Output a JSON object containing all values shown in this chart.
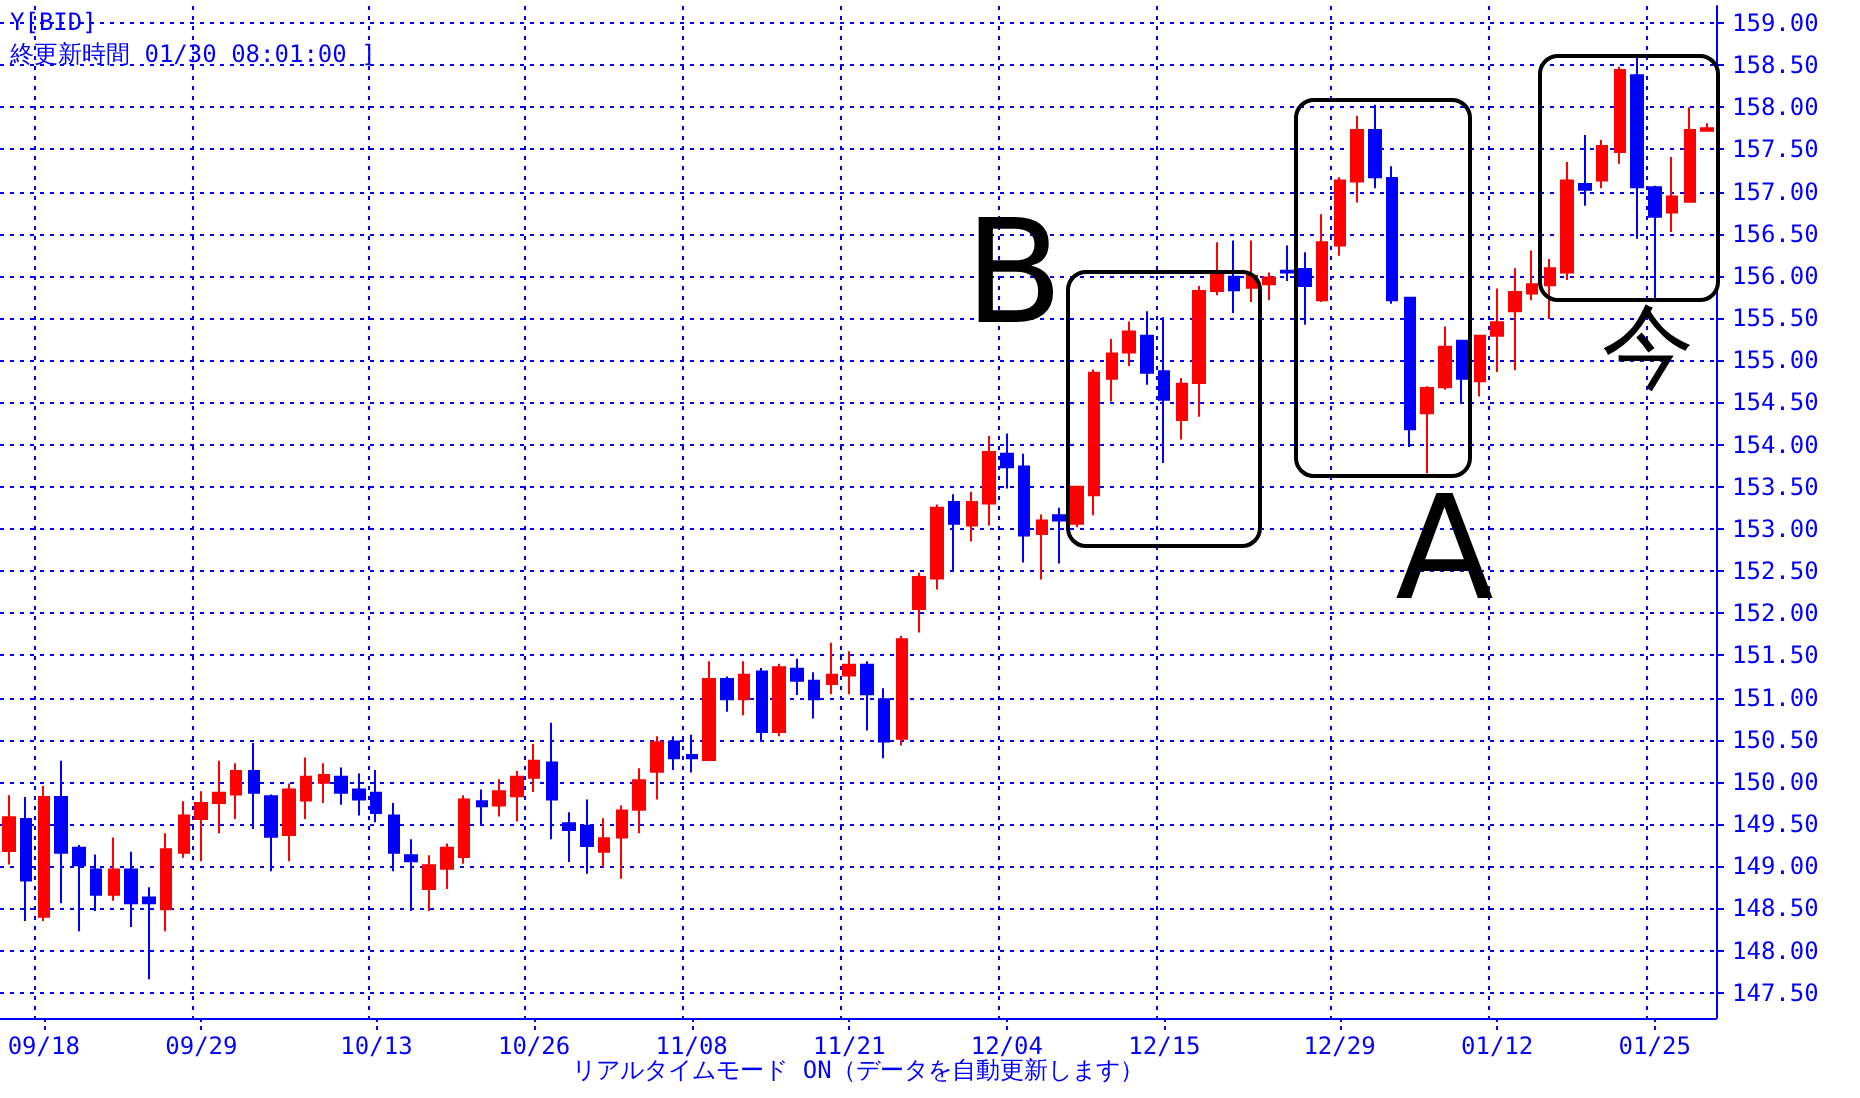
{
  "chart_data": {
    "type": "candlestick",
    "title": "Y[BID]",
    "subtitle": "終更新時間 01/30 08:01:00 ]",
    "categories": [
      null,
      null,
      "09/18",
      null,
      null,
      null,
      null,
      null,
      null,
      null,
      null,
      "09/29",
      null,
      null,
      null,
      null,
      null,
      null,
      null,
      null,
      null,
      "10/13",
      null,
      null,
      null,
      null,
      null,
      null,
      null,
      null,
      "10/26",
      null,
      null,
      null,
      null,
      null,
      null,
      null,
      null,
      "11/08",
      null,
      null,
      null,
      null,
      null,
      null,
      null,
      null,
      "11/21",
      null,
      null,
      null,
      null,
      null,
      null,
      null,
      null,
      "12/04",
      null,
      null,
      null,
      null,
      null,
      null,
      null,
      null,
      "12/15",
      null,
      null,
      null,
      null,
      null,
      null,
      null,
      null,
      null,
      "12/29",
      null,
      null,
      null,
      null,
      null,
      null,
      null,
      null,
      "01/12",
      null,
      null,
      null,
      null,
      null,
      null,
      null,
      null,
      "01/25",
      null,
      null,
      null
    ],
    "ohlc": [
      [
        149.18,
        149.84,
        149.02,
        149.58
      ],
      [
        149.56,
        149.82,
        148.35,
        148.83
      ],
      [
        148.4,
        149.95,
        148.35,
        149.82
      ],
      [
        149.82,
        150.25,
        148.56,
        149.16
      ],
      [
        149.22,
        149.25,
        148.23,
        149.01
      ],
      [
        148.96,
        149.14,
        148.47,
        148.66
      ],
      [
        148.66,
        149.34,
        148.59,
        148.96
      ],
      [
        148.96,
        149.17,
        148.28,
        148.56
      ],
      [
        148.63,
        148.75,
        147.66,
        148.56
      ],
      [
        148.49,
        149.39,
        148.23,
        149.2
      ],
      [
        149.16,
        149.77,
        149.1,
        149.6
      ],
      [
        149.56,
        149.89,
        149.06,
        149.75
      ],
      [
        149.75,
        150.25,
        149.39,
        149.87
      ],
      [
        149.85,
        150.22,
        149.56,
        150.13
      ],
      [
        150.13,
        150.46,
        149.44,
        149.87
      ],
      [
        149.83,
        149.85,
        148.94,
        149.35
      ],
      [
        149.37,
        149.98,
        149.06,
        149.91
      ],
      [
        149.78,
        150.29,
        149.56,
        150.06
      ],
      [
        149.99,
        150.22,
        149.75,
        150.08
      ],
      [
        150.06,
        150.17,
        149.73,
        149.87
      ],
      [
        149.91,
        150.1,
        149.6,
        149.79
      ],
      [
        149.87,
        150.14,
        149.52,
        149.63
      ],
      [
        149.6,
        149.75,
        148.94,
        149.16
      ],
      [
        149.13,
        149.32,
        148.47,
        149.06
      ],
      [
        148.73,
        149.13,
        148.47,
        149.01
      ],
      [
        148.97,
        149.27,
        148.73,
        149.22
      ],
      [
        149.11,
        149.84,
        149.03,
        149.79
      ],
      [
        149.77,
        149.91,
        149.49,
        149.71
      ],
      [
        149.72,
        150.03,
        149.59,
        149.89
      ],
      [
        149.83,
        150.13,
        149.53,
        150.06
      ],
      [
        150.05,
        150.45,
        149.88,
        150.25
      ],
      [
        150.23,
        150.7,
        149.32,
        149.79
      ],
      [
        149.51,
        149.64,
        149.05,
        149.43
      ],
      [
        149.48,
        149.79,
        148.91,
        149.24
      ],
      [
        149.17,
        149.57,
        148.99,
        149.33
      ],
      [
        149.34,
        149.72,
        148.85,
        149.66
      ],
      [
        149.67,
        150.16,
        149.39,
        150.02
      ],
      [
        150.12,
        150.54,
        149.79,
        150.47
      ],
      [
        150.48,
        150.54,
        150.14,
        150.28
      ],
      [
        150.32,
        150.56,
        150.11,
        150.28
      ],
      [
        150.26,
        151.43,
        150.26,
        151.22
      ],
      [
        151.22,
        151.25,
        150.83,
        150.98
      ],
      [
        150.98,
        151.43,
        150.79,
        151.27
      ],
      [
        151.31,
        151.35,
        150.49,
        150.59
      ],
      [
        150.59,
        151.4,
        150.54,
        151.36
      ],
      [
        151.34,
        151.46,
        151.03,
        151.2
      ],
      [
        151.2,
        151.3,
        150.75,
        150.98
      ],
      [
        151.16,
        151.65,
        151.04,
        151.27
      ],
      [
        151.26,
        151.55,
        151.04,
        151.39
      ],
      [
        151.39,
        151.43,
        150.61,
        151.04
      ],
      [
        150.98,
        151.11,
        150.28,
        150.48
      ],
      [
        150.51,
        151.73,
        150.43,
        151.69
      ],
      [
        152.05,
        152.48,
        151.77,
        152.43
      ],
      [
        152.41,
        153.29,
        152.28,
        153.25
      ],
      [
        153.32,
        153.41,
        152.5,
        153.06
      ],
      [
        153.04,
        153.44,
        152.85,
        153.32
      ],
      [
        153.3,
        154.1,
        153.04,
        153.91
      ],
      [
        153.89,
        154.13,
        153.48,
        153.73
      ],
      [
        153.74,
        153.89,
        152.6,
        152.92
      ],
      [
        152.94,
        153.17,
        152.4,
        153.1
      ],
      [
        153.16,
        153.25,
        152.59,
        153.1
      ],
      [
        153.06,
        153.5,
        153.02,
        153.5
      ],
      [
        153.4,
        154.89,
        153.16,
        154.85
      ],
      [
        154.78,
        155.25,
        154.51,
        155.08
      ],
      [
        155.09,
        155.46,
        154.93,
        155.34
      ],
      [
        155.29,
        155.58,
        154.71,
        154.85
      ],
      [
        154.87,
        155.51,
        153.78,
        154.53
      ],
      [
        154.29,
        154.79,
        154.06,
        154.72
      ],
      [
        154.73,
        155.88,
        154.33,
        155.82
      ],
      [
        155.82,
        156.4,
        155.77,
        156.04
      ],
      [
        155.99,
        156.42,
        155.56,
        155.83
      ],
      [
        155.86,
        156.42,
        155.69,
        156.0
      ],
      [
        155.9,
        156.04,
        155.71,
        155.98
      ],
      [
        156.06,
        156.36,
        155.94,
        156.04
      ],
      [
        156.08,
        156.28,
        155.42,
        155.88
      ],
      [
        155.71,
        156.73,
        155.69,
        156.4
      ],
      [
        156.36,
        157.17,
        156.24,
        157.13
      ],
      [
        157.12,
        157.9,
        156.87,
        157.73
      ],
      [
        157.73,
        158.03,
        157.04,
        157.17
      ],
      [
        157.16,
        157.3,
        155.67,
        155.71
      ],
      [
        155.74,
        155.75,
        153.97,
        154.18
      ],
      [
        154.37,
        154.69,
        153.66,
        154.67
      ],
      [
        154.68,
        155.4,
        154.65,
        155.16
      ],
      [
        155.23,
        155.23,
        154.49,
        154.78
      ],
      [
        154.75,
        155.29,
        154.57,
        155.29
      ],
      [
        155.29,
        155.85,
        154.86,
        155.45
      ],
      [
        155.58,
        156.09,
        154.88,
        155.81
      ],
      [
        155.79,
        156.3,
        155.71,
        155.9
      ],
      [
        155.89,
        156.2,
        155.49,
        156.09
      ],
      [
        156.04,
        157.35,
        155.95,
        157.13
      ],
      [
        157.09,
        157.67,
        156.83,
        157.02
      ],
      [
        157.13,
        157.61,
        157.04,
        157.54
      ],
      [
        157.47,
        158.48,
        157.33,
        158.44
      ],
      [
        158.38,
        158.62,
        156.44,
        157.05
      ],
      [
        157.05,
        157.07,
        155.73,
        156.7
      ],
      [
        156.75,
        157.41,
        156.52,
        156.94
      ],
      [
        156.88,
        158.0,
        156.88,
        157.73
      ],
      [
        157.72,
        157.81,
        157.72,
        157.75
      ]
    ],
    "colors": [
      "#ff0000",
      "#0000ff",
      "#ff0000",
      "#0000ff",
      "#0000ff",
      "#0000ff",
      "#ff0000",
      "#0000ff",
      "#0000ff",
      "#ff0000",
      "#ff0000",
      "#ff0000",
      "#ff0000",
      "#ff0000",
      "#0000ff",
      "#0000ff",
      "#ff0000",
      "#ff0000",
      "#ff0000",
      "#0000ff",
      "#0000ff",
      "#0000ff",
      "#0000ff",
      "#0000ff",
      "#ff0000",
      "#ff0000",
      "#ff0000",
      "#0000ff",
      "#ff0000",
      "#ff0000",
      "#ff0000",
      "#0000ff",
      "#0000ff",
      "#0000ff",
      "#ff0000",
      "#ff0000",
      "#ff0000",
      "#ff0000",
      "#0000ff",
      "#0000ff",
      "#ff0000",
      "#0000ff",
      "#ff0000",
      "#0000ff",
      "#ff0000",
      "#0000ff",
      "#0000ff",
      "#ff0000",
      "#ff0000",
      "#0000ff",
      "#0000ff",
      "#ff0000",
      "#ff0000",
      "#ff0000",
      "#0000ff",
      "#ff0000",
      "#ff0000",
      "#0000ff",
      "#0000ff",
      "#ff0000",
      "#0000ff",
      "#ff0000",
      "#ff0000",
      "#ff0000",
      "#ff0000",
      "#0000ff",
      "#0000ff",
      "#ff0000",
      "#ff0000",
      "#ff0000",
      "#0000ff",
      "#ff0000",
      "#ff0000",
      "#0000ff",
      "#0000ff",
      "#ff0000",
      "#ff0000",
      "#ff0000",
      "#0000ff",
      "#0000ff",
      "#0000ff",
      "#ff0000",
      "#ff0000",
      "#0000ff",
      "#ff0000",
      "#ff0000",
      "#ff0000",
      "#ff0000",
      "#ff0000",
      "#ff0000",
      "#0000ff",
      "#ff0000",
      "#ff0000",
      "#0000ff",
      "#0000ff",
      "#ff0000",
      "#ff0000",
      "#ff0000"
    ],
    "ylim": [
      147.2,
      159.2
    ],
    "yticks": [
      {
        "value": 147.5,
        "label": "147.50"
      },
      {
        "value": 148,
        "label": "148.00"
      },
      {
        "value": 148.5,
        "label": "148.50"
      },
      {
        "value": 149,
        "label": "149.00"
      },
      {
        "value": 149.5,
        "label": "149.50"
      },
      {
        "value": 150,
        "label": "150.00"
      },
      {
        "value": 150.5,
        "label": "150.50"
      },
      {
        "value": 151,
        "label": "151.00"
      },
      {
        "value": 151.5,
        "label": "151.50"
      },
      {
        "value": 152,
        "label": "152.00"
      },
      {
        "value": 152.5,
        "label": "152.50"
      },
      {
        "value": 153,
        "label": "153.00"
      },
      {
        "value": 153.5,
        "label": "153.50"
      },
      {
        "value": 154,
        "label": "154.00"
      },
      {
        "value": 154.5,
        "label": "154.50"
      },
      {
        "value": 155,
        "label": "155.00"
      },
      {
        "value": 155.5,
        "label": "155.50"
      },
      {
        "value": 156,
        "label": "156.00"
      },
      {
        "value": 156.5,
        "label": "156.50"
      },
      {
        "value": 157,
        "label": "157.00"
      },
      {
        "value": 157.5,
        "label": "157.50"
      },
      {
        "value": 158,
        "label": "158.00"
      },
      {
        "value": 158.5,
        "label": "158.50"
      },
      {
        "value": 159,
        "label": "159.00"
      }
    ],
    "grid": true,
    "annotations": [
      "B",
      "A",
      "今",
      "リアルタイムモード ON（データを自動更新します）"
    ]
  }
}
